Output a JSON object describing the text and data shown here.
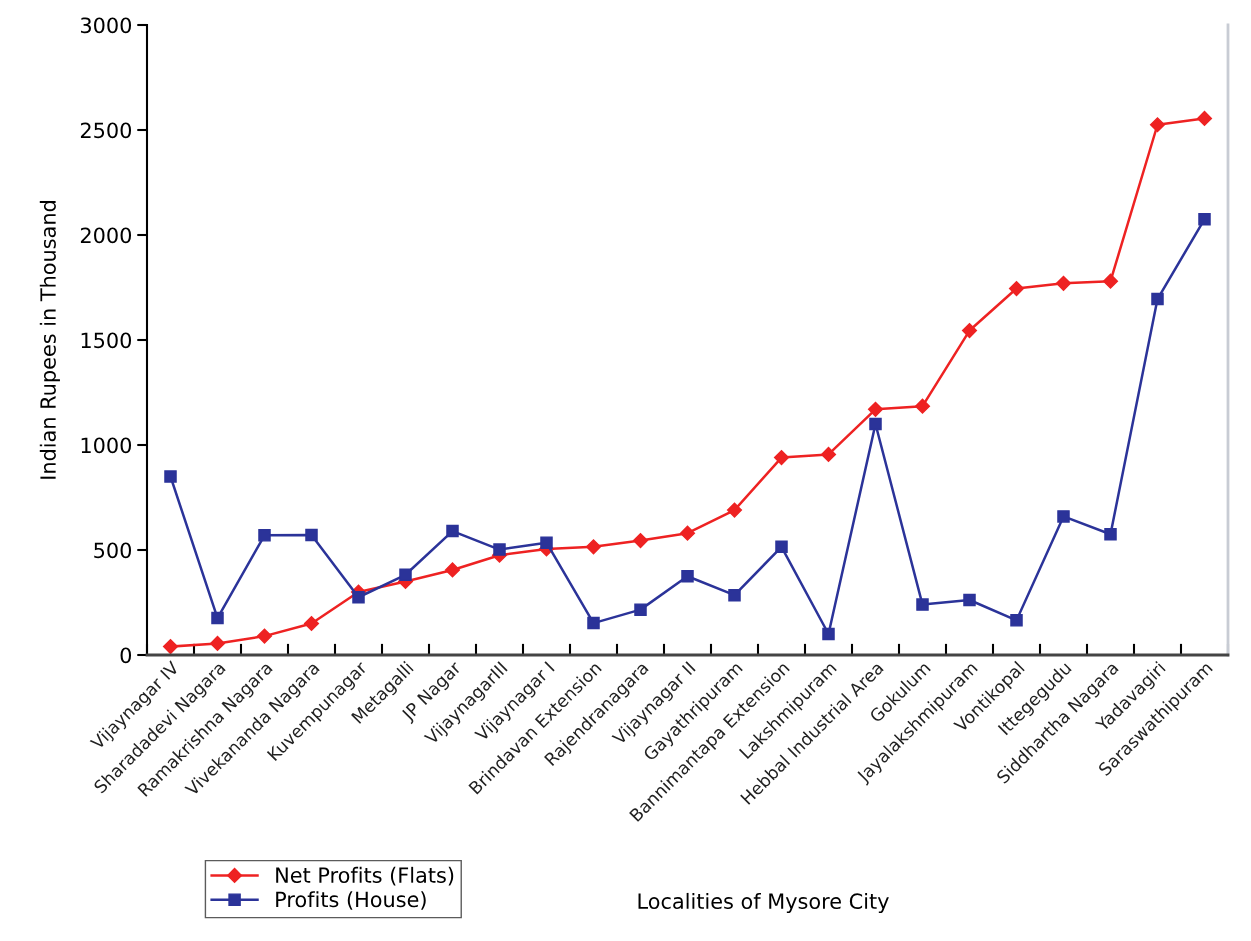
{
  "chart_data": {
    "type": "line",
    "ylabel": "Indian Rupees in Thousand",
    "xlabel": "Localities of Mysore City",
    "categories": [
      "Vijaynagar IV",
      "Sharadadevi Nagara",
      "Ramakrishna Nagara",
      "Vivekananda Nagara",
      "Kuvempunagar",
      "Metagalli",
      "JP Nagar",
      "VijaynagarIII",
      "Vijaynagar I",
      "Brindavan Extension",
      "Rajendranagara",
      "Vijaynagar II",
      "Gayathripuram",
      "Bannimantapa Extension",
      "Lakshmipuram",
      "Hebbal Industrial Area",
      "Gokulum",
      "Jayalakshmipuram",
      "Vontikopal",
      "Ittegegudu",
      "Siddhartha Nagara",
      "Yadavagiri",
      "Saraswathipuram"
    ],
    "series": [
      {
        "name": "Net Profits (Flats)",
        "color": "#ee2222",
        "marker": "diamond",
        "values": [
          40,
          55,
          90,
          150,
          300,
          350,
          405,
          475,
          505,
          515,
          545,
          580,
          690,
          940,
          955,
          1170,
          1185,
          1545,
          1745,
          1770,
          1780,
          2525,
          2555
        ]
      },
      {
        "name": "Profits (House)",
        "color": "#2b3399",
        "marker": "square",
        "values": [
          850,
          176,
          570,
          572,
          275,
          382,
          590,
          502,
          535,
          152,
          216,
          375,
          285,
          515,
          100,
          1100,
          240,
          262,
          165,
          660,
          575,
          1695,
          2075
        ]
      }
    ],
    "ylim": [
      0,
      3000
    ],
    "yticks": [
      0,
      500,
      1000,
      1500,
      2000,
      2500,
      3000
    ],
    "legend": "bottom left",
    "grid": false,
    "line_style": "solid"
  }
}
